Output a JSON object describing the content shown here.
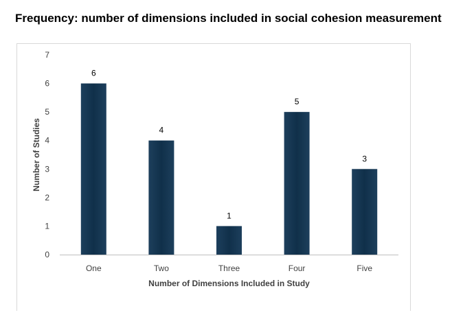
{
  "page_title": "Frequency: number of dimensions included in social cohesion measurement",
  "chart_data": {
    "type": "bar",
    "title": "Frequency: number of dimensions included in social cohesion measurement",
    "categories": [
      "One",
      "Two",
      "Three",
      "Four",
      "Five"
    ],
    "values": [
      6,
      4,
      1,
      5,
      3
    ],
    "data_labels": [
      "6",
      "4",
      "1",
      "5",
      "3"
    ],
    "xlabel": "Number of Dimensions Included in Study",
    "ylabel": "Number of Studies",
    "ylim": [
      0,
      7
    ],
    "yticks": [
      "0",
      "1",
      "2",
      "3",
      "4",
      "5",
      "6",
      "7"
    ],
    "grid": false,
    "legend": "none",
    "bar_color": "#10304a"
  }
}
